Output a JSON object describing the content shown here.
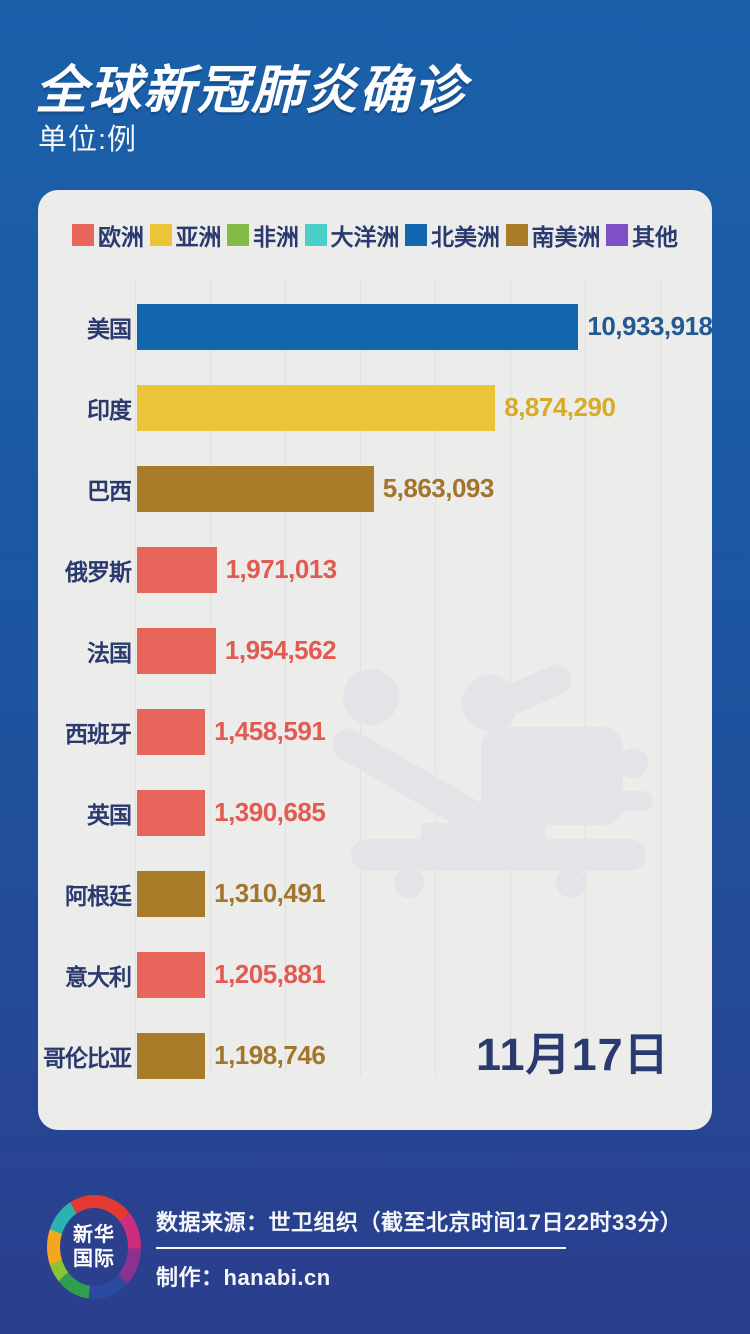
{
  "header": {
    "title": "全球新冠肺炎确诊",
    "unit_label": "单位:例"
  },
  "legend": {
    "items": [
      {
        "label": "欧洲",
        "color": "#e8655c"
      },
      {
        "label": "亚洲",
        "color": "#ecc437"
      },
      {
        "label": "非洲",
        "color": "#83bb47"
      },
      {
        "label": "大洋洲",
        "color": "#49cfc7"
      },
      {
        "label": "北美洲",
        "color": "#1166ad"
      },
      {
        "label": "南美洲",
        "color": "#a87b28"
      },
      {
        "label": "其他",
        "color": "#7e4fc5"
      }
    ]
  },
  "chart_data": {
    "type": "bar",
    "orientation": "horizontal",
    "title": "全球新冠肺炎确诊",
    "unit": "例",
    "date_label": "11月17日",
    "legend_position": "top",
    "grid": true,
    "max_value": 10933918,
    "bars": [
      {
        "country": "美国",
        "continent": "北美洲",
        "value": 10933918,
        "display": "10,933,918",
        "color": "#1166ad",
        "value_color": "#23598f"
      },
      {
        "country": "印度",
        "continent": "亚洲",
        "value": 8874290,
        "display": "8,874,290",
        "color": "#ecc437",
        "value_color": "#d8ab27"
      },
      {
        "country": "巴西",
        "continent": "南美洲",
        "value": 5863093,
        "display": "5,863,093",
        "color": "#a87b28",
        "value_color": "#a3752a"
      },
      {
        "country": "俄罗斯",
        "continent": "欧洲",
        "value": 1971013,
        "display": "1,971,013",
        "color": "#e8655c",
        "value_color": "#e25b52"
      },
      {
        "country": "法国",
        "continent": "欧洲",
        "value": 1954562,
        "display": "1,954,562",
        "color": "#e8655c",
        "value_color": "#e25b52"
      },
      {
        "country": "西班牙",
        "continent": "欧洲",
        "value": 1458591,
        "display": "1,458,591",
        "color": "#e8655c",
        "value_color": "#e25b52"
      },
      {
        "country": "英国",
        "continent": "欧洲",
        "value": 1390685,
        "display": "1,390,685",
        "color": "#e8655c",
        "value_color": "#e25b52"
      },
      {
        "country": "阿根廷",
        "continent": "南美洲",
        "value": 1310491,
        "display": "1,310,491",
        "color": "#a87b28",
        "value_color": "#a3752a"
      },
      {
        "country": "意大利",
        "continent": "欧洲",
        "value": 1205881,
        "display": "1,205,881",
        "color": "#e8655c",
        "value_color": "#e25b52"
      },
      {
        "country": "哥伦比亚",
        "continent": "南美洲",
        "value": 1198746,
        "display": "1,198,746",
        "color": "#a87b28",
        "value_color": "#a3752a"
      }
    ]
  },
  "watermark": {
    "icon": "patient-on-stretcher-icon",
    "color": "#e3e4e7"
  },
  "footer": {
    "logo_text_line1": "新华",
    "logo_text_line2": "国际",
    "source": "数据来源：世卫组织（截至北京时间17日22时33分）",
    "credit": "制作：hanabi.cn"
  }
}
